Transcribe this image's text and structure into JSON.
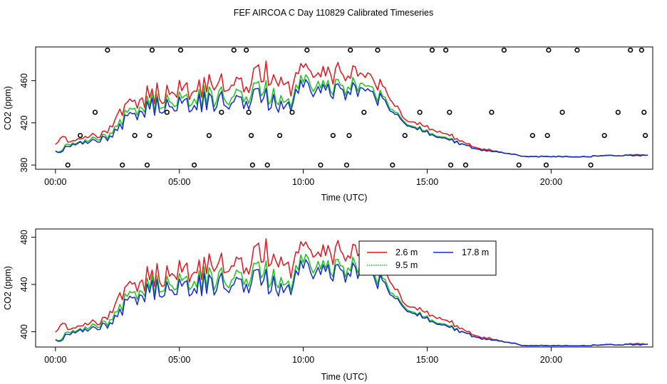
{
  "figure": {
    "title": "FEF AIRCOA C  Day 110829  Calibrated Timeseries"
  },
  "chart_data": [
    {
      "type": "scatter",
      "title": "FEF AIRCOA C  Day 110829  Calibrated Timeseries",
      "xlabel": "Time (UTC)",
      "ylabel": "CO2 (ppm)",
      "xlim": [
        -0.8,
        24.1
      ],
      "ylim": [
        376,
        492
      ],
      "xticks": [
        0,
        5,
        10,
        15,
        20
      ],
      "xtick_labels": [
        "00:00",
        "05:00",
        "10:00",
        "15:00",
        "20:00"
      ],
      "yticks": [
        380,
        420,
        460
      ],
      "ytick_labels": [
        "380",
        "420",
        "460"
      ],
      "colors": {
        "c1": "#e8141c",
        "c2": "#18c818",
        "c3": "#1428d8",
        "points": "#000000"
      },
      "series": [
        {
          "name": "2.6 m",
          "color": "#e8141c"
        },
        {
          "name": "9.5 m",
          "color": "#18c818"
        },
        {
          "name": "17.8 m",
          "color": "#1428d8"
        }
      ],
      "points": {
        "x": [
          0.5,
          1.0,
          1.6,
          2.1,
          2.7,
          3.2,
          3.7,
          3.8,
          3.9,
          4.5,
          5.05,
          5.6,
          6.2,
          6.7,
          7.2,
          7.7,
          7.8,
          7.9,
          7.95,
          8.55,
          9.05,
          9.55,
          10.15,
          10.7,
          11.2,
          11.75,
          11.85,
          11.9,
          12.45,
          13.0,
          13.6,
          14.1,
          14.7,
          15.2,
          15.75,
          15.9,
          15.95,
          16.55,
          17.6,
          18.1,
          18.7,
          19.25,
          19.8,
          19.85,
          19.9,
          20.45,
          21.05,
          21.6,
          22.15,
          22.7,
          23.2,
          23.65,
          23.75,
          23.8
        ],
        "y": [
          380,
          408,
          430,
          489,
          380,
          408,
          380,
          408,
          489,
          430,
          489,
          380,
          408,
          430,
          489,
          489,
          430,
          408,
          380,
          380,
          408,
          430,
          489,
          380,
          408,
          380,
          408,
          489,
          430,
          489,
          380,
          408,
          430,
          489,
          489,
          430,
          380,
          380,
          430,
          489,
          380,
          408,
          380,
          408,
          489,
          430,
          489,
          380,
          408,
          430,
          489,
          489,
          430,
          408
        ]
      }
    },
    {
      "type": "line",
      "xlabel": "Time (UTC)",
      "ylabel": "CO2 (ppm)",
      "xlim": [
        -0.8,
        24.1
      ],
      "ylim": [
        387,
        487
      ],
      "xticks": [
        0,
        5,
        10,
        15,
        20
      ],
      "xtick_labels": [
        "00:00",
        "05:00",
        "10:00",
        "15:00",
        "20:00"
      ],
      "yticks": [
        400,
        440,
        480
      ],
      "ytick_labels": [
        "400",
        "440",
        "480"
      ],
      "legend": {
        "position": "top-right",
        "entries": [
          "2.6 m",
          "9.5 m",
          "17.8 m"
        ]
      },
      "colors": {
        "c1": "#e8141c",
        "c2": "#18c818",
        "c3": "#1428d8"
      },
      "anchors": {
        "x": [
          0,
          0.25,
          0.5,
          0.75,
          1.0,
          1.5,
          2.0,
          2.5,
          3.0,
          3.5,
          4.0,
          4.5,
          5.0,
          5.5,
          6.0,
          6.5,
          7.0,
          7.5,
          8.0,
          8.5,
          9.0,
          9.5,
          9.7,
          9.9,
          10.2,
          10.5,
          11.0,
          11.5,
          12.0,
          12.5,
          13.0,
          13.5,
          13.8,
          14.0,
          14.5,
          15.0,
          15.5,
          16.0,
          16.5,
          17.0,
          17.5,
          18.0,
          18.5,
          19.0,
          19.5,
          20.0,
          20.5,
          21.0,
          21.5,
          22.0,
          22.5,
          23.0,
          23.5,
          23.9
        ],
        "base": [
          393,
          393,
          398,
          399,
          400,
          402,
          405,
          415,
          425,
          432,
          436,
          437,
          438,
          438,
          440,
          440,
          441,
          442,
          443,
          442,
          441,
          440,
          445,
          462,
          455,
          452,
          450,
          449,
          450,
          447,
          443,
          436,
          428,
          420,
          416,
          411,
          407,
          403,
          399,
          395,
          393,
          392,
          390,
          388,
          388,
          388,
          388,
          388,
          388,
          389,
          389,
          389,
          389,
          389
        ],
        "s1_offset": [
          6,
          16,
          4,
          4,
          4,
          5,
          5,
          13,
          12,
          12,
          12,
          12,
          14,
          16,
          16,
          16,
          17,
          18,
          19,
          21,
          22,
          18,
          18,
          16,
          18,
          17,
          17,
          17,
          18,
          16,
          12,
          9,
          7,
          5,
          5,
          5,
          5,
          4,
          2,
          1,
          1,
          0,
          0,
          0,
          0,
          0,
          0,
          0,
          0,
          0,
          0,
          0,
          1,
          0
        ],
        "s2_offset": [
          0,
          1,
          2,
          1,
          1,
          2,
          2,
          4,
          4,
          4,
          4,
          4,
          4,
          5,
          5,
          5,
          5,
          5,
          6,
          6,
          6,
          4,
          4,
          5,
          4,
          4,
          4,
          4,
          4,
          4,
          3,
          2,
          2,
          1,
          1,
          1,
          1,
          1,
          0,
          0,
          0,
          0,
          0,
          0,
          0,
          0,
          0,
          0,
          0,
          0,
          0,
          0,
          0,
          0
        ],
        "noise_amplitude": [
          1,
          2,
          2,
          2,
          3,
          3,
          4,
          6,
          7,
          8,
          9,
          9,
          10,
          10,
          10,
          10,
          10,
          10,
          11,
          11,
          11,
          9,
          8,
          7,
          9,
          9,
          9,
          9,
          9,
          8,
          7,
          5,
          4,
          3,
          2,
          2,
          2,
          2,
          1.5,
          1,
          1,
          0.5,
          0.5,
          0.5,
          0.5,
          0.5,
          0.5,
          0.5,
          0.5,
          0.5,
          0.5,
          0.5,
          0.5,
          0.5
        ]
      }
    }
  ]
}
